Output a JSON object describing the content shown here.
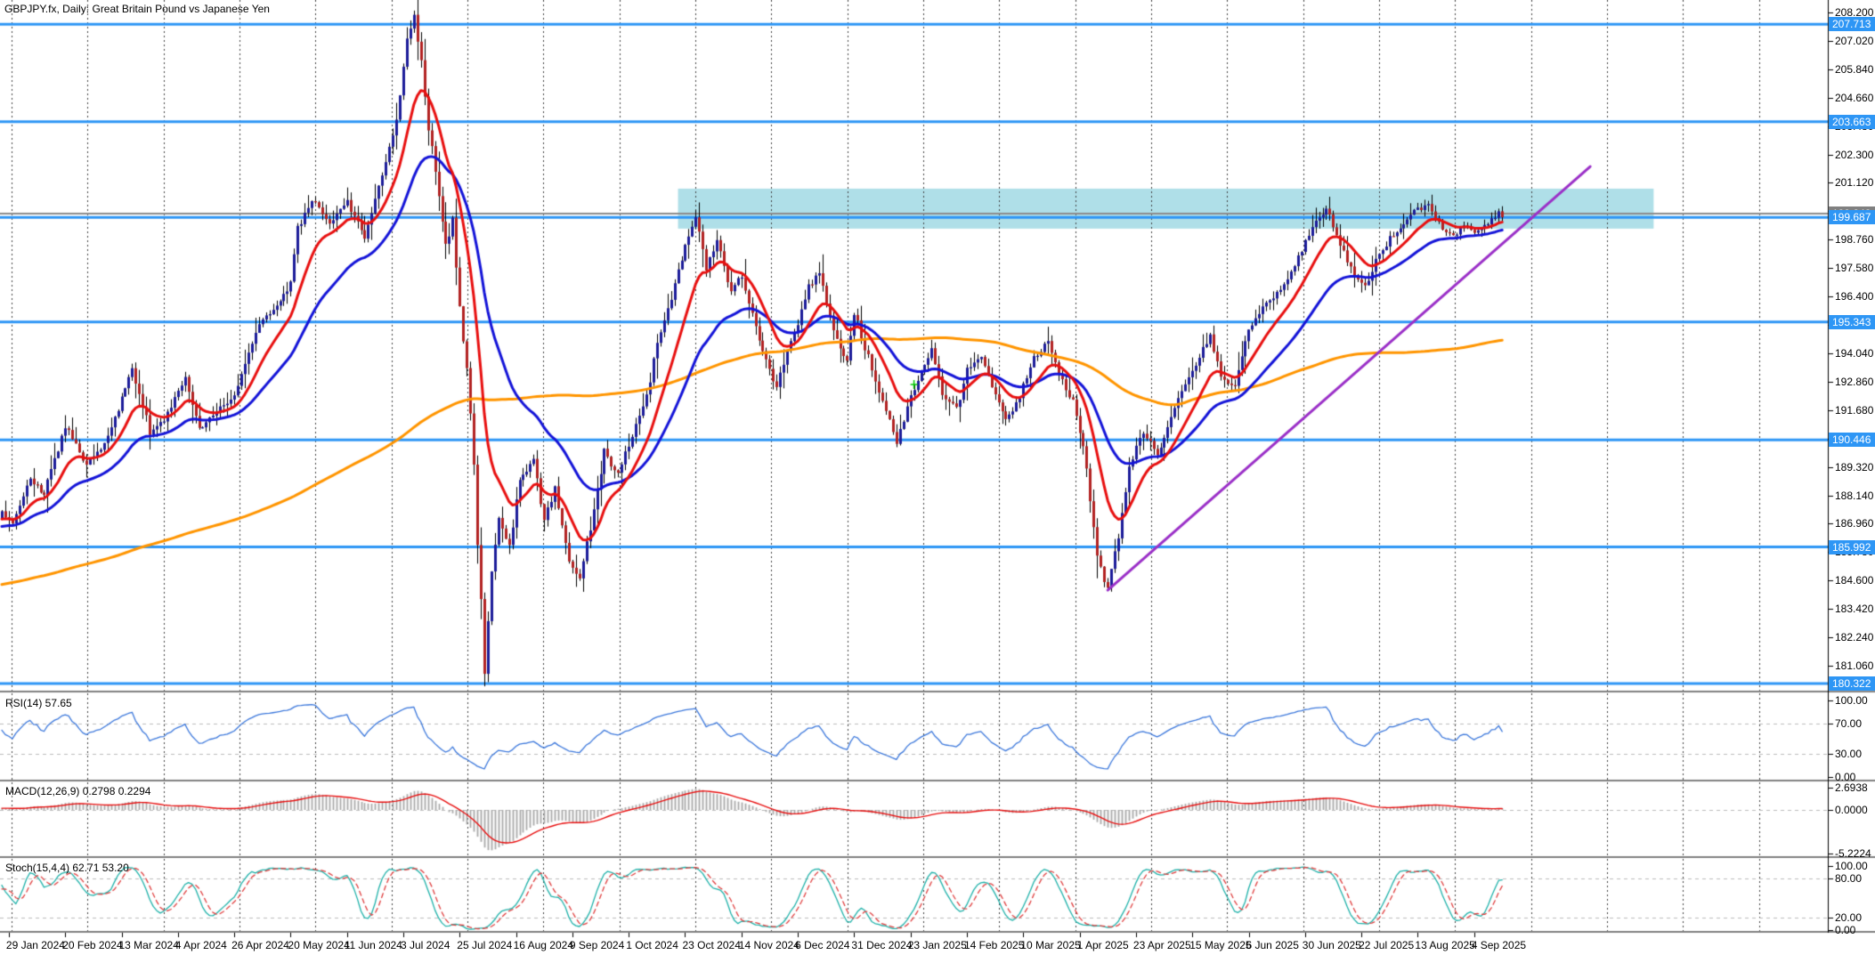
{
  "title": "GBPJPY.fx, Daily:  Great Britain Pound vs Japanese Yen",
  "panes": {
    "rsi": {
      "label": "RSI(14) 57.65",
      "ticks": [
        {
          "label": "100.00",
          "v": 100
        },
        {
          "label": "70.00",
          "v": 70
        },
        {
          "label": "30.00",
          "v": 30
        },
        {
          "label": "0.00",
          "v": 0
        }
      ],
      "levels": [
        70,
        30
      ]
    },
    "macd": {
      "label": "MACD(12,26,9) 0.2798 0.2294",
      "ticks": [
        {
          "label": "2.6938",
          "v": 2.6938
        },
        {
          "label": "0.0000",
          "v": 0
        },
        {
          "label": "-5.2224",
          "v": -5.2224
        }
      ],
      "levels": [
        0
      ]
    },
    "stoch": {
      "label": "Stoch(15,4,4) 62.71 53.20",
      "ticks": [
        {
          "label": "100.00",
          "v": 100
        },
        {
          "label": "80.00",
          "v": 80
        },
        {
          "label": "20.00",
          "v": 20
        },
        {
          "label": "0.00",
          "v": 0
        }
      ],
      "levels": [
        80,
        20
      ]
    }
  },
  "price_axis": {
    "ticks": [
      "208.200",
      "207.020",
      "205.840",
      "204.660",
      "203.480",
      "202.300",
      "201.120",
      "199.940",
      "198.760",
      "197.580",
      "196.400",
      "195.220",
      "194.040",
      "192.860",
      "191.680",
      "190.500",
      "189.320",
      "188.140",
      "186.960",
      "185.780",
      "184.600",
      "183.420",
      "182.240",
      "181.060"
    ],
    "boxed_blue": [
      "207.713",
      "203.663",
      "199.687",
      "195.343",
      "190.446",
      "185.992",
      "180.322"
    ],
    "boxed_gray": "199.843"
  },
  "date_axis": [
    "29 Jan 2024",
    "20 Feb 2024",
    "13 Mar 2024",
    "4 Apr 2024",
    "26 Apr 2024",
    "20 May 2024",
    "11 Jun 2024",
    "3 Jul 2024",
    "25 Jul 2024",
    "16 Aug 2024",
    "9 Sep 2024",
    "1 Oct 2024",
    "23 Oct 2024",
    "14 Nov 2024",
    "6 Dec 2024",
    "31 Dec 2024",
    "23 Jan 2025",
    "14 Feb 2025",
    "10 Mar 2025",
    "1 Apr 2025",
    "23 Apr 2025",
    "15 May 2025",
    "6 Jun 2025",
    "30 Jun 2025",
    "22 Jul 2025",
    "13 Aug 2025",
    "4 Sep 2025"
  ],
  "colors": {
    "background": "#FFFFFF",
    "grid": "#404040",
    "level_line_blue": "#2E96F5",
    "label_box_blue": "#2E96F5",
    "label_box_gray": "#808080",
    "gray_price_line": "#8C8C8C",
    "bull_candle": "#1C1C99",
    "bear_candle": "#B22222",
    "wick": "#000000",
    "ma_fast_red": "#E81010",
    "ma_mid_blue": "#1414D8",
    "ma_slow_orange": "#FF9500",
    "trendline_purple": "#9B30C8",
    "zone_cyan": "#AFDFE8",
    "rsi_line": "#3C78DC",
    "macd_histogram": "#ABABAB",
    "macd_signal": "#E81010",
    "stoch_k": "#20B2AA",
    "stoch_d": "#E04040",
    "pane_level_dash": "#BDBDBD",
    "separator": "#808080",
    "marker_green": "#00C800"
  },
  "chart_data": {
    "type": "candlestick",
    "symbol": "GBPJPY.fx",
    "timeframe": "Daily",
    "price_range_top_label": 208.2,
    "price_range_bottom_label": 180.322,
    "bars_visible": 427,
    "pre_history": {
      "bars": 200,
      "start_price": 181.5,
      "end_price": 187.3
    },
    "close_anchors": [
      [
        0,
        187.4
      ],
      [
        3,
        186.9
      ],
      [
        8,
        188.8
      ],
      [
        12,
        188.2
      ],
      [
        18,
        191.0
      ],
      [
        24,
        189.4
      ],
      [
        30,
        190.5
      ],
      [
        37,
        193.4
      ],
      [
        42,
        190.8
      ],
      [
        46,
        191.3
      ],
      [
        52,
        193.1
      ],
      [
        56,
        190.9
      ],
      [
        60,
        191.5
      ],
      [
        66,
        192.3
      ],
      [
        73,
        195.3
      ],
      [
        79,
        196.2
      ],
      [
        82,
        196.9
      ],
      [
        84,
        199.2
      ],
      [
        88,
        200.4
      ],
      [
        93,
        199.5
      ],
      [
        98,
        200.3
      ],
      [
        103,
        198.9
      ],
      [
        107,
        201.0
      ],
      [
        112,
        203.8
      ],
      [
        115,
        207.0
      ],
      [
        117,
        208.0
      ],
      [
        119,
        206.2
      ],
      [
        121,
        203.4
      ],
      [
        123,
        201.6
      ],
      [
        126,
        198.4
      ],
      [
        128,
        199.6
      ],
      [
        130,
        195.9
      ],
      [
        132,
        193.4
      ],
      [
        134,
        189.6
      ],
      [
        135.5,
        184.9
      ],
      [
        137,
        180.8
      ],
      [
        139,
        184.9
      ],
      [
        141,
        187.3
      ],
      [
        144,
        186.0
      ],
      [
        147,
        188.8
      ],
      [
        151,
        189.6
      ],
      [
        154,
        187.1
      ],
      [
        157,
        188.4
      ],
      [
        161,
        185.4
      ],
      [
        164,
        184.7
      ],
      [
        168,
        187.5
      ],
      [
        171,
        189.9
      ],
      [
        175,
        189.0
      ],
      [
        178,
        190.3
      ],
      [
        183,
        192.3
      ],
      [
        186,
        194.4
      ],
      [
        190,
        196.4
      ],
      [
        194,
        198.5
      ],
      [
        197,
        199.8
      ],
      [
        200,
        197.6
      ],
      [
        203,
        198.8
      ],
      [
        207,
        196.6
      ],
      [
        210,
        197.3
      ],
      [
        213,
        195.6
      ],
      [
        216,
        194.1
      ],
      [
        220,
        192.6
      ],
      [
        223,
        194.2
      ],
      [
        226,
        195.3
      ],
      [
        229,
        196.8
      ],
      [
        232,
        197.4
      ],
      [
        236,
        194.9
      ],
      [
        240,
        193.7
      ],
      [
        242,
        195.8
      ],
      [
        245,
        194.3
      ],
      [
        250,
        192.1
      ],
      [
        254,
        190.4
      ],
      [
        257,
        191.8
      ],
      [
        260,
        193.0
      ],
      [
        264,
        194.2
      ],
      [
        267,
        192.4
      ],
      [
        271,
        191.7
      ],
      [
        274,
        193.3
      ],
      [
        278,
        194.0
      ],
      [
        281,
        192.6
      ],
      [
        285,
        191.2
      ],
      [
        289,
        192.3
      ],
      [
        293,
        193.8
      ],
      [
        297,
        194.6
      ],
      [
        300,
        193.2
      ],
      [
        304,
        192.0
      ],
      [
        307,
        190.3
      ],
      [
        309,
        188.1
      ],
      [
        311,
        185.6
      ],
      [
        314,
        184.2
      ],
      [
        317,
        186.5
      ],
      [
        320,
        189.4
      ],
      [
        324,
        190.8
      ],
      [
        328,
        189.8
      ],
      [
        332,
        191.5
      ],
      [
        336,
        192.8
      ],
      [
        339,
        193.6
      ],
      [
        343,
        194.8
      ],
      [
        346,
        193.1
      ],
      [
        350,
        192.6
      ],
      [
        353,
        194.6
      ],
      [
        357,
        195.8
      ],
      [
        361,
        196.3
      ],
      [
        365,
        197.2
      ],
      [
        369,
        198.3
      ],
      [
        372,
        199.3
      ],
      [
        376,
        200.1
      ],
      [
        380,
        198.6
      ],
      [
        384,
        197.2
      ],
      [
        387,
        196.8
      ],
      [
        390,
        197.9
      ],
      [
        394,
        198.8
      ],
      [
        398,
        199.5
      ],
      [
        401,
        199.9
      ],
      [
        405,
        200.3
      ],
      [
        408,
        199.4
      ],
      [
        412,
        198.9
      ],
      [
        415,
        199.3
      ],
      [
        419,
        199.1
      ],
      [
        422,
        199.4
      ],
      [
        425,
        199.9
      ],
      [
        426,
        199.7
      ]
    ],
    "horizontal_levels": [
      207.713,
      203.663,
      199.687,
      195.343,
      190.446,
      185.992,
      180.322
    ],
    "gray_price_level": 199.843,
    "supply_zone": {
      "price_top": 200.88,
      "price_bottom": 199.22,
      "bar_start": 192,
      "bar_end": 469
    },
    "trendline": {
      "bar_start": 314,
      "price_start": 184.2,
      "bar_end": 451,
      "price_end": 201.8
    },
    "marker": {
      "bar": 259,
      "price": 192.74
    },
    "moving_averages": [
      {
        "name": "fast",
        "type": "ema",
        "period": 13,
        "color_key": "ma_fast_red"
      },
      {
        "name": "mid",
        "type": "ema",
        "period": 34,
        "color_key": "ma_mid_blue"
      },
      {
        "name": "slow",
        "type": "sma",
        "period": 200,
        "color_key": "ma_slow_orange"
      }
    ],
    "indicators": {
      "rsi": {
        "period": 14,
        "current": 57.65,
        "range": [
          0,
          100
        ]
      },
      "macd": {
        "fast": 12,
        "slow": 26,
        "signal": 9,
        "current_main": 0.2798,
        "current_signal": 0.2294,
        "range": [
          -5.2224,
          2.6938
        ]
      },
      "stoch": {
        "k_period": 15,
        "d_period": 4,
        "slowing": 4,
        "current_k": 62.71,
        "current_d": 53.2,
        "range": [
          0,
          100
        ]
      }
    }
  }
}
